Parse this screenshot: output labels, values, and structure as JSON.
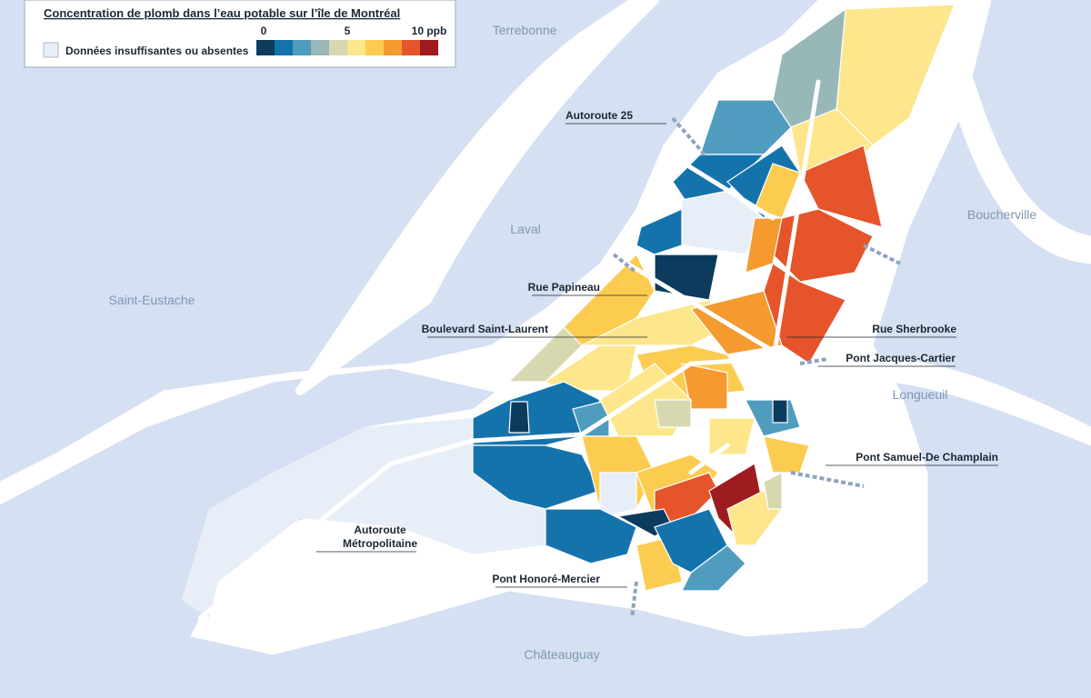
{
  "legend": {
    "title": "Concentration de plomb dans l’eau potable sur l’île de Montréal",
    "scale_labels": [
      "0",
      "5",
      "10 ppb"
    ],
    "colors": [
      "#0c3b5e",
      "#1573ac",
      "#4f9cbf",
      "#98b8b8",
      "#d8d8b0",
      "#fde68c",
      "#fccc50",
      "#f49a2e",
      "#e5542a",
      "#9e1b1e"
    ],
    "no_data_label": "Données insuffisantes ou absentes",
    "no_data_color": "#e8eef8"
  },
  "places": [
    "Terrebonne",
    "Laval",
    "Saint-Eustache",
    "Boucherville",
    "Longueuil",
    "Châteauguay"
  ],
  "roads": [
    "Autoroute 25",
    "Rue Papineau",
    "Boulevard Saint-Laurent",
    "Rue Sherbrooke",
    "Pont Jacques-Cartier",
    "Pont Samuel-De Champlain",
    "Pont Honoré-Mercier"
  ],
  "road_multiline": [
    "Autoroute",
    "Métropolitaine"
  ]
}
